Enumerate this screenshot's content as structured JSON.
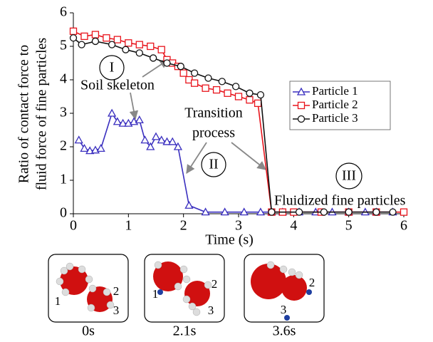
{
  "chart_data": {
    "type": "line",
    "y_label": [
      "Ratio of contact force to",
      "fluid force of fine particles"
    ],
    "x_label": "Time (s)",
    "xlim": [
      0,
      6
    ],
    "xticks": [
      0,
      1,
      2,
      3,
      4,
      5,
      6
    ],
    "ylim": [
      0,
      6
    ],
    "yticks": [
      0,
      1,
      2,
      3,
      4,
      5,
      6
    ],
    "legend_position": "right",
    "series": [
      {
        "name": "Particle 1",
        "color": "#3a2fbf",
        "marker": "triangle",
        "x": [
          0.1,
          0.2,
          0.3,
          0.4,
          0.5,
          0.7,
          0.8,
          0.9,
          1.0,
          1.1,
          1.2,
          1.3,
          1.4,
          1.5,
          1.6,
          1.7,
          1.8,
          1.9,
          2.1,
          2.4,
          2.75,
          3.1,
          3.4,
          3.6,
          3.8,
          4.1,
          4.4,
          4.7,
          5.0,
          5.3,
          5.5,
          5.8
        ],
        "values": [
          2.2,
          1.95,
          1.88,
          1.9,
          1.95,
          3.0,
          2.75,
          2.7,
          2.7,
          2.75,
          2.8,
          2.2,
          2.0,
          2.3,
          2.2,
          2.15,
          2.15,
          2.0,
          0.25,
          0.05,
          0.05,
          0.05,
          0.05,
          0.05,
          0.05,
          0.05,
          0.05,
          0.05,
          0.05,
          0.05,
          0.05,
          0.05
        ]
      },
      {
        "name": "Particle 2",
        "color": "#e8141c",
        "marker": "square",
        "x": [
          0,
          0.2,
          0.4,
          0.6,
          0.8,
          1.0,
          1.2,
          1.4,
          1.6,
          1.7,
          1.8,
          1.9,
          2.0,
          2.1,
          2.2,
          2.4,
          2.6,
          2.8,
          3.0,
          3.2,
          3.35,
          3.6,
          3.8,
          4.0,
          4.5,
          5.0,
          5.5,
          6.0
        ],
        "values": [
          5.45,
          5.3,
          5.35,
          5.25,
          5.2,
          5.1,
          5.05,
          5.0,
          4.9,
          4.6,
          4.5,
          4.4,
          4.2,
          4.0,
          3.9,
          3.75,
          3.7,
          3.6,
          3.5,
          3.4,
          3.3,
          0.05,
          0.05,
          0.05,
          0.05,
          0.05,
          0.05,
          0.05
        ]
      },
      {
        "name": "Particle 3",
        "color": "#111111",
        "marker": "circle",
        "x": [
          0,
          0.15,
          0.4,
          0.7,
          0.95,
          1.2,
          1.45,
          1.7,
          1.95,
          2.2,
          2.45,
          2.7,
          2.95,
          3.2,
          3.4,
          3.6,
          4.1,
          4.55,
          5.0,
          5.5,
          5.8
        ],
        "values": [
          5.25,
          5.05,
          5.15,
          5.05,
          4.9,
          4.8,
          4.65,
          4.5,
          4.4,
          4.2,
          4.05,
          3.95,
          3.8,
          3.6,
          3.55,
          0.05,
          0.05,
          0.05,
          0.05,
          0.05,
          0.05
        ]
      }
    ],
    "annotations": [
      "I",
      "Soil skeleton",
      "Transition",
      "process",
      "II",
      "III",
      "Fluidized fine particles"
    ]
  },
  "snapshots": [
    {
      "caption": "0s",
      "labels": [
        "1",
        "2",
        "3"
      ]
    },
    {
      "caption": "2.1s",
      "labels": [
        "1",
        "2",
        "3"
      ]
    },
    {
      "caption": "3.6s",
      "labels": [
        "2",
        "3"
      ]
    }
  ]
}
